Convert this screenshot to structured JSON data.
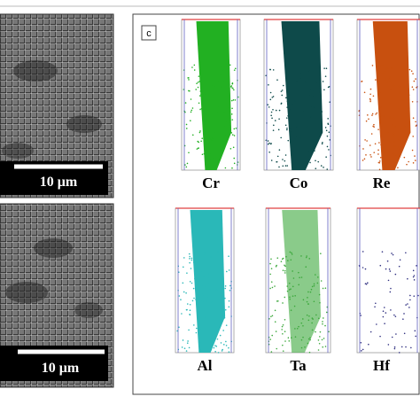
{
  "panel_label": "c",
  "scale_bars": [
    "10 μm",
    "10 μm"
  ],
  "elements": [
    "Cr",
    "Co",
    "Re",
    "Al",
    "Ta",
    "Hf"
  ]
}
